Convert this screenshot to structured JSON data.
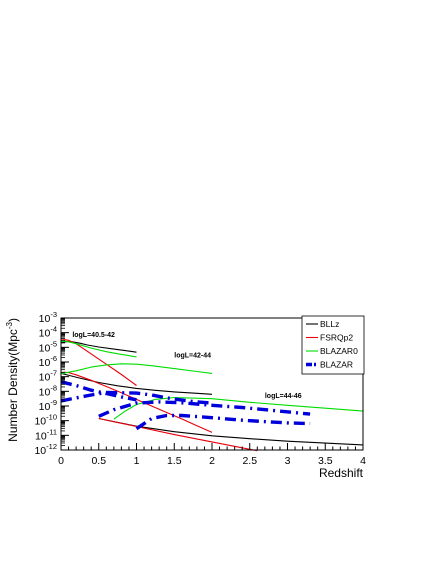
{
  "chart_data": {
    "type": "line",
    "xlabel": "Redshift",
    "ylabel": "Number Density(Mpc",
    "ylabel_exponent": "-3",
    "ylabel_suffix": ")",
    "xlim": [
      0,
      4
    ],
    "ylim_log10": [
      -12,
      -3
    ],
    "log_y": true,
    "x_ticks": [
      0,
      0.5,
      1,
      1.5,
      2,
      2.5,
      3,
      3.5,
      4
    ],
    "x_tick_labels": [
      "0",
      "0.5",
      "1",
      "1.5",
      "2",
      "2.5",
      "3",
      "3.5",
      "4"
    ],
    "y_tick_exponents": [
      "-12",
      "-11",
      "-10",
      "-9",
      "-8",
      "-7",
      "-6",
      "-5",
      "-4",
      "-3"
    ],
    "grid": false,
    "legend_position": "top-right",
    "legend": [
      {
        "label": "BLLz",
        "color": "#000000",
        "style": "solid"
      },
      {
        "label": "FSRQp2",
        "color": "#e8000b",
        "style": "solid"
      },
      {
        "label": "BLAZAR0",
        "color": "#00dd00",
        "style": "solid"
      },
      {
        "label": "BLAZAR",
        "color": "#0000dd",
        "style": "dashdot-thick"
      }
    ],
    "annotations": [
      {
        "text": "logL=40.5-42",
        "x": 0.15,
        "y_log10": -4.3
      },
      {
        "text": "logL=42-44",
        "x": 1.5,
        "y_log10": -5.7
      },
      {
        "text": "logL=44-46",
        "x": 2.7,
        "y_log10": -8.45
      }
    ],
    "series": [
      {
        "legend": "BLLz",
        "color": "#000000",
        "style": "solid",
        "x": [
          0,
          0.05,
          0.1,
          0.15,
          0.25,
          0.35,
          0.5,
          0.7,
          0.85,
          1.0
        ],
        "y_log10": [
          -4.7,
          -4.63,
          -4.6,
          -4.62,
          -4.72,
          -4.84,
          -4.98,
          -5.12,
          -5.22,
          -5.33
        ]
      },
      {
        "legend": "FSRQp2",
        "color": "#e8000b",
        "style": "solid",
        "x": [
          0,
          0.05,
          0.1,
          0.2,
          0.4,
          0.6,
          0.8,
          1.0
        ],
        "y_log10": [
          -4.5,
          -4.48,
          -4.52,
          -4.75,
          -5.45,
          -6.15,
          -6.85,
          -7.6
        ]
      },
      {
        "legend": "BLAZAR0",
        "color": "#00dd00",
        "style": "solid",
        "x": [
          0,
          0.05,
          0.1,
          0.2,
          0.4,
          0.6,
          0.8,
          1.0
        ],
        "y_log10": [
          -4.6,
          -4.58,
          -4.62,
          -4.75,
          -5.05,
          -5.3,
          -5.48,
          -5.65
        ]
      },
      {
        "legend": "BLLz",
        "color": "#000000",
        "style": "solid",
        "x": [
          0,
          0.25,
          0.5,
          0.75,
          1.0,
          1.25,
          1.5,
          1.75,
          2.0
        ],
        "y_log10": [
          -6.78,
          -7.1,
          -7.4,
          -7.62,
          -7.8,
          -7.93,
          -8.04,
          -8.12,
          -8.2
        ]
      },
      {
        "legend": "FSRQp2",
        "color": "#e8000b",
        "style": "solid",
        "x": [
          0,
          0.05,
          0.1,
          0.2,
          0.4,
          0.6,
          0.8,
          1.0,
          1.2,
          1.4,
          1.6,
          1.8,
          2.0
        ],
        "y_log10": [
          -6.75,
          -6.7,
          -6.72,
          -6.87,
          -7.25,
          -7.67,
          -8.1,
          -8.55,
          -9.0,
          -9.44,
          -9.88,
          -10.35,
          -10.8
        ]
      },
      {
        "legend": "BLAZAR0",
        "color": "#00dd00",
        "style": "solid",
        "x": [
          0,
          0.2,
          0.4,
          0.6,
          0.8,
          1.0,
          1.2,
          1.5,
          1.8,
          2.0
        ],
        "y_log10": [
          -6.8,
          -6.6,
          -6.35,
          -6.2,
          -6.12,
          -6.15,
          -6.25,
          -6.45,
          -6.65,
          -6.78
        ]
      },
      {
        "legend": "BLAZAR",
        "color": "#0000dd",
        "style": "dashdot-thick",
        "x": [
          0,
          0.2,
          0.4,
          0.6,
          0.8,
          1.0
        ],
        "y_log10": [
          -7.35,
          -7.6,
          -7.92,
          -8.15,
          -8.38,
          -8.58
        ]
      },
      {
        "legend": "BLLz",
        "color": "#000000",
        "style": "solid",
        "x": [
          0.5,
          0.75,
          1.0,
          1.5,
          2.0,
          2.5,
          3.0,
          3.5,
          4.0
        ],
        "y_log10": [
          -9.85,
          -10.12,
          -10.38,
          -10.75,
          -11.03,
          -11.23,
          -11.4,
          -11.53,
          -11.65
        ]
      },
      {
        "legend": "FSRQp2",
        "color": "#e8000b",
        "style": "solid",
        "x": [
          0.5,
          1.0,
          1.5,
          2.0,
          2.5,
          2.6
        ],
        "y_log10": [
          -9.85,
          -10.4,
          -10.95,
          -11.45,
          -11.95,
          -12.05
        ]
      },
      {
        "legend": "BLAZAR0",
        "color": "#00dd00",
        "style": "solid",
        "x": [
          0.7,
          0.85,
          1.0,
          1.25,
          1.5,
          2.0,
          2.5,
          3.0,
          3.5,
          4.0
        ],
        "y_log10": [
          -9.9,
          -9.35,
          -8.9,
          -8.55,
          -8.42,
          -8.5,
          -8.75,
          -8.95,
          -9.15,
          -9.35
        ]
      },
      {
        "legend": "BLAZAR",
        "color": "#0000dd",
        "style": "dashdot-thick",
        "x": [
          0,
          0.2,
          0.4,
          0.6,
          0.8,
          1.0,
          1.2,
          1.4,
          1.6,
          1.8,
          2.0
        ],
        "y_log10": [
          -8.65,
          -8.45,
          -8.25,
          -8.08,
          -8.1,
          -8.12,
          -8.25,
          -8.45,
          -8.6,
          -8.72,
          -8.8
        ]
      },
      {
        "legend": "BLAZAR",
        "color": "#0000dd",
        "style": "dashdot-thick",
        "x": [
          0.5,
          0.7,
          1.0,
          1.3,
          1.6,
          2.0,
          2.4,
          2.8,
          3.3
        ],
        "y_log10": [
          -9.7,
          -9.25,
          -8.8,
          -8.72,
          -8.78,
          -8.95,
          -9.1,
          -9.3,
          -9.55
        ]
      },
      {
        "legend": "BLAZAR",
        "color": "#0000dd",
        "style": "dashdot-thick",
        "x": [
          1.0,
          1.2,
          1.4,
          1.6,
          2.0,
          2.4,
          2.8,
          3.0,
          3.3
        ],
        "y_log10": [
          -10.55,
          -9.85,
          -9.65,
          -9.65,
          -9.8,
          -9.97,
          -10.1,
          -10.15,
          -10.2
        ]
      }
    ]
  }
}
